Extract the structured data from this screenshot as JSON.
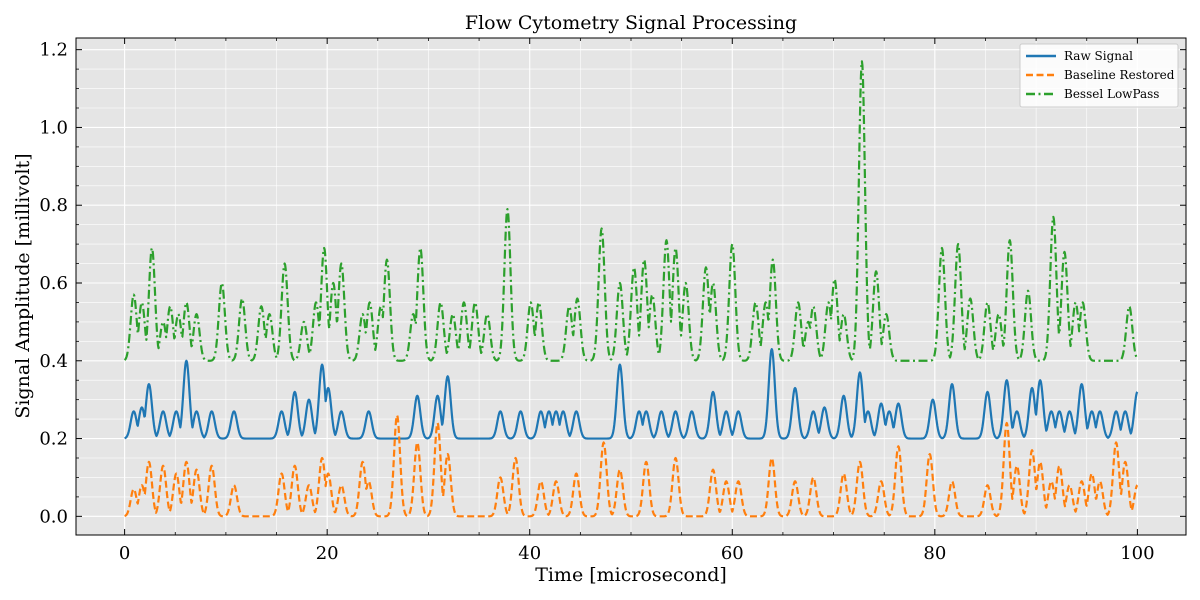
{
  "chart_data": {
    "type": "line",
    "title": "Flow Cytometry Signal Processing",
    "xlabel": "Time [microsecond]",
    "ylabel": "Signal Amplitude [millivolt]",
    "xlim": [
      -4.8,
      104.8
    ],
    "ylim": [
      -0.048,
      1.23
    ],
    "xticks": [
      0,
      20,
      40,
      60,
      80,
      100
    ],
    "xtick_labels": [
      "0",
      "20",
      "40",
      "60",
      "80",
      "100"
    ],
    "yticks": [
      0.0,
      0.2,
      0.4,
      0.6,
      0.8,
      1.0,
      1.2
    ],
    "ytick_labels": [
      "0.0",
      "0.2",
      "0.4",
      "0.6",
      "0.8",
      "1.0",
      "1.2"
    ],
    "grid": true,
    "legend_position": "top-right",
    "series": [
      {
        "name": "Raw Signal",
        "color": "#1f77b4",
        "style": "solid",
        "baseline": 0.2,
        "peaks": [
          [
            0.9,
            0.27
          ],
          [
            1.7,
            0.28
          ],
          [
            2.4,
            0.34
          ],
          [
            3.8,
            0.27
          ],
          [
            5.1,
            0.27
          ],
          [
            6.1,
            0.4
          ],
          [
            7.1,
            0.27
          ],
          [
            8.6,
            0.27
          ],
          [
            10.8,
            0.27
          ],
          [
            15.5,
            0.27
          ],
          [
            16.8,
            0.32
          ],
          [
            18.2,
            0.3
          ],
          [
            19.5,
            0.39
          ],
          [
            20.1,
            0.33
          ],
          [
            21.4,
            0.27
          ],
          [
            24.1,
            0.27
          ],
          [
            28.9,
            0.31
          ],
          [
            30.9,
            0.31
          ],
          [
            31.9,
            0.36
          ],
          [
            37.1,
            0.27
          ],
          [
            39.1,
            0.27
          ],
          [
            41.1,
            0.27
          ],
          [
            41.9,
            0.27
          ],
          [
            42.6,
            0.27
          ],
          [
            43.3,
            0.27
          ],
          [
            44.6,
            0.27
          ],
          [
            48.9,
            0.39
          ],
          [
            50.8,
            0.27
          ],
          [
            51.5,
            0.27
          ],
          [
            53.0,
            0.27
          ],
          [
            54.4,
            0.27
          ],
          [
            56.0,
            0.27
          ],
          [
            58.1,
            0.32
          ],
          [
            59.4,
            0.27
          ],
          [
            60.6,
            0.27
          ],
          [
            63.9,
            0.43
          ],
          [
            66.2,
            0.33
          ],
          [
            68.0,
            0.27
          ],
          [
            69.1,
            0.28
          ],
          [
            71.0,
            0.31
          ],
          [
            72.6,
            0.37
          ],
          [
            73.4,
            0.27
          ],
          [
            74.7,
            0.29
          ],
          [
            75.5,
            0.27
          ],
          [
            76.4,
            0.29
          ],
          [
            79.8,
            0.3
          ],
          [
            81.7,
            0.34
          ],
          [
            85.2,
            0.32
          ],
          [
            87.1,
            0.35
          ],
          [
            88.1,
            0.27
          ],
          [
            89.6,
            0.33
          ],
          [
            90.4,
            0.35
          ],
          [
            91.5,
            0.27
          ],
          [
            92.3,
            0.27
          ],
          [
            93.3,
            0.27
          ],
          [
            94.5,
            0.34
          ],
          [
            95.5,
            0.27
          ],
          [
            96.3,
            0.27
          ],
          [
            97.9,
            0.27
          ],
          [
            98.8,
            0.27
          ],
          [
            100.0,
            0.32
          ]
        ]
      },
      {
        "name": "Baseline Restored",
        "color": "#ff7f0e",
        "style": "dashed",
        "baseline": 0.0,
        "peaks": [
          [
            0.9,
            0.07
          ],
          [
            1.7,
            0.08
          ],
          [
            2.4,
            0.14
          ],
          [
            3.8,
            0.13
          ],
          [
            5.1,
            0.11
          ],
          [
            6.1,
            0.14
          ],
          [
            7.1,
            0.12
          ],
          [
            8.6,
            0.13
          ],
          [
            10.8,
            0.08
          ],
          [
            15.5,
            0.11
          ],
          [
            16.8,
            0.13
          ],
          [
            18.2,
            0.08
          ],
          [
            19.5,
            0.15
          ],
          [
            20.1,
            0.11
          ],
          [
            21.4,
            0.08
          ],
          [
            23.5,
            0.14
          ],
          [
            24.1,
            0.09
          ],
          [
            26.9,
            0.26
          ],
          [
            28.9,
            0.19
          ],
          [
            30.9,
            0.24
          ],
          [
            31.9,
            0.16
          ],
          [
            37.1,
            0.1
          ],
          [
            38.6,
            0.15
          ],
          [
            41.1,
            0.09
          ],
          [
            42.6,
            0.09
          ],
          [
            44.6,
            0.11
          ],
          [
            47.3,
            0.19
          ],
          [
            48.9,
            0.12
          ],
          [
            51.5,
            0.14
          ],
          [
            54.4,
            0.15
          ],
          [
            58.1,
            0.12
          ],
          [
            59.4,
            0.09
          ],
          [
            60.6,
            0.09
          ],
          [
            63.9,
            0.15
          ],
          [
            66.2,
            0.09
          ],
          [
            68.0,
            0.1
          ],
          [
            71.0,
            0.11
          ],
          [
            72.6,
            0.14
          ],
          [
            74.7,
            0.09
          ],
          [
            76.4,
            0.18
          ],
          [
            79.5,
            0.16
          ],
          [
            81.7,
            0.09
          ],
          [
            85.2,
            0.08
          ],
          [
            87.1,
            0.24
          ],
          [
            88.1,
            0.13
          ],
          [
            89.6,
            0.17
          ],
          [
            90.4,
            0.14
          ],
          [
            91.5,
            0.09
          ],
          [
            92.3,
            0.13
          ],
          [
            93.3,
            0.08
          ],
          [
            94.5,
            0.09
          ],
          [
            95.5,
            0.11
          ],
          [
            96.3,
            0.09
          ],
          [
            97.9,
            0.19
          ],
          [
            98.8,
            0.14
          ],
          [
            100.0,
            0.08
          ]
        ]
      },
      {
        "name": "Bessel LowPass",
        "color": "#2ca02c",
        "style": "dashdot",
        "baseline": 0.4,
        "peaks": [
          [
            0.9,
            0.57
          ],
          [
            1.7,
            0.55
          ],
          [
            2.7,
            0.69
          ],
          [
            3.8,
            0.5
          ],
          [
            4.5,
            0.54
          ],
          [
            5.3,
            0.52
          ],
          [
            6.1,
            0.55
          ],
          [
            7.1,
            0.52
          ],
          [
            9.6,
            0.6
          ],
          [
            11.6,
            0.56
          ],
          [
            13.5,
            0.54
          ],
          [
            14.3,
            0.52
          ],
          [
            15.8,
            0.65
          ],
          [
            17.7,
            0.5
          ],
          [
            18.9,
            0.55
          ],
          [
            19.7,
            0.69
          ],
          [
            20.6,
            0.6
          ],
          [
            21.4,
            0.65
          ],
          [
            23.5,
            0.52
          ],
          [
            24.2,
            0.55
          ],
          [
            25.3,
            0.54
          ],
          [
            25.9,
            0.66
          ],
          [
            28.5,
            0.52
          ],
          [
            29.2,
            0.69
          ],
          [
            31.2,
            0.55
          ],
          [
            32.4,
            0.52
          ],
          [
            33.5,
            0.55
          ],
          [
            34.6,
            0.55
          ],
          [
            35.8,
            0.52
          ],
          [
            37.8,
            0.79
          ],
          [
            40.1,
            0.55
          ],
          [
            40.9,
            0.55
          ],
          [
            43.9,
            0.54
          ],
          [
            44.7,
            0.56
          ],
          [
            47.1,
            0.74
          ],
          [
            48.9,
            0.6
          ],
          [
            50.3,
            0.64
          ],
          [
            51.3,
            0.66
          ],
          [
            52.1,
            0.57
          ],
          [
            53.5,
            0.71
          ],
          [
            54.4,
            0.69
          ],
          [
            55.4,
            0.6
          ],
          [
            57.4,
            0.64
          ],
          [
            58.1,
            0.6
          ],
          [
            60.0,
            0.7
          ],
          [
            62.3,
            0.55
          ],
          [
            63.3,
            0.55
          ],
          [
            64.0,
            0.66
          ],
          [
            66.5,
            0.55
          ],
          [
            67.5,
            0.5
          ],
          [
            68.0,
            0.54
          ],
          [
            69.5,
            0.55
          ],
          [
            70.1,
            0.61
          ],
          [
            71.0,
            0.52
          ],
          [
            72.8,
            1.17
          ],
          [
            74.2,
            0.63
          ],
          [
            75.2,
            0.52
          ],
          [
            80.7,
            0.69
          ],
          [
            82.3,
            0.7
          ],
          [
            83.5,
            0.56
          ],
          [
            85.2,
            0.55
          ],
          [
            86.3,
            0.52
          ],
          [
            87.4,
            0.71
          ],
          [
            89.2,
            0.58
          ],
          [
            91.7,
            0.77
          ],
          [
            92.8,
            0.68
          ],
          [
            93.9,
            0.55
          ],
          [
            94.6,
            0.55
          ],
          [
            99.2,
            0.54
          ]
        ]
      }
    ]
  }
}
